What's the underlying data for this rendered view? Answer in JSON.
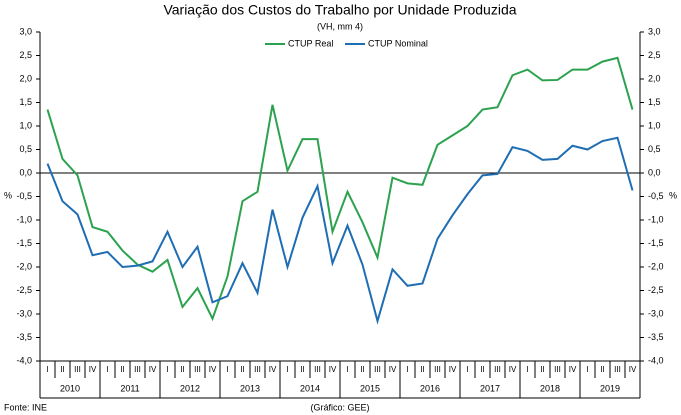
{
  "chart_data": {
    "type": "line",
    "title": "Variação dos Custos do Trabalho por Unidade Produzida",
    "subtitle": "(VH, mm 4)",
    "y_label": "%",
    "y2_label": "%",
    "source": "Fonte: INE",
    "note": "(Gráfico: GEE)",
    "categories": [
      "I",
      "II",
      "III",
      "IV",
      "I",
      "II",
      "III",
      "IV",
      "I",
      "II",
      "III",
      "IV",
      "I",
      "II",
      "III",
      "IV",
      "I",
      "II",
      "III",
      "IV",
      "I",
      "II",
      "III",
      "IV",
      "I",
      "II",
      "III",
      "IV",
      "I",
      "II",
      "III",
      "IV",
      "I",
      "II",
      "III",
      "IV",
      "I",
      "II",
      "III",
      "IV"
    ],
    "years": [
      "2010",
      "2011",
      "2012",
      "2013",
      "2014",
      "2015",
      "2016",
      "2017",
      "2018",
      "2019"
    ],
    "series": [
      {
        "name": "CTUP Real",
        "color": "#2ca24f",
        "values": [
          1.35,
          0.3,
          -0.05,
          -1.15,
          -1.25,
          -1.65,
          -1.95,
          -2.1,
          -1.85,
          -2.85,
          -2.45,
          -3.1,
          -2.2,
          -0.6,
          -0.4,
          1.45,
          0.05,
          0.72,
          0.72,
          -1.25,
          -0.4,
          -1.05,
          -1.8,
          -0.1,
          -0.22,
          -0.25,
          0.6,
          0.8,
          1.0,
          1.35,
          1.4,
          2.08,
          2.2,
          1.97,
          1.98,
          2.2,
          2.2,
          2.37,
          2.45,
          1.35
        ]
      },
      {
        "name": "CTUP Nominal",
        "color": "#1f6db3",
        "values": [
          0.2,
          -0.6,
          -0.88,
          -1.75,
          -1.68,
          -2.0,
          -1.97,
          -1.88,
          -1.25,
          -2.0,
          -1.57,
          -2.75,
          -2.62,
          -1.92,
          -2.55,
          -0.78,
          -2.0,
          -0.95,
          -0.28,
          -1.92,
          -1.12,
          -1.95,
          -3.15,
          -2.05,
          -2.4,
          -2.35,
          -1.4,
          -0.9,
          -0.45,
          -0.05,
          -0.02,
          0.55,
          0.47,
          0.28,
          0.3,
          0.58,
          0.5,
          0.68,
          0.75,
          -0.37
        ]
      }
    ],
    "ylim": [
      -4,
      3
    ],
    "yticks": [
      {
        "value": -4,
        "label": "-4,0"
      },
      {
        "value": -3.5,
        "label": "-3,5"
      },
      {
        "value": -3,
        "label": "-3,0"
      },
      {
        "value": -2.5,
        "label": "-2,5"
      },
      {
        "value": -2,
        "label": "-2,0"
      },
      {
        "value": -1.5,
        "label": "-1,5"
      },
      {
        "value": -1,
        "label": "-1,0"
      },
      {
        "value": -0.5,
        "label": "-0,5"
      },
      {
        "value": 0,
        "label": "0,0"
      },
      {
        "value": 0.5,
        "label": "0,5"
      },
      {
        "value": 1,
        "label": "1,0"
      },
      {
        "value": 1.5,
        "label": "1,5"
      },
      {
        "value": 2,
        "label": "2,0"
      },
      {
        "value": 2.5,
        "label": "2,5"
      },
      {
        "value": 3,
        "label": "3,0"
      }
    ],
    "legend": "top"
  }
}
